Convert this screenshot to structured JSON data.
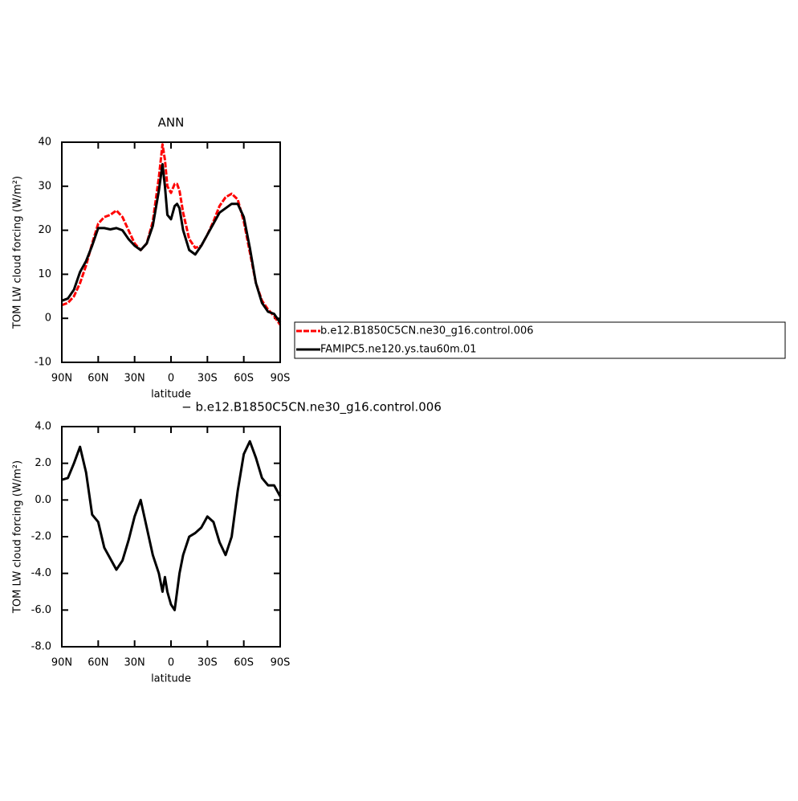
{
  "chart_data": [
    {
      "type": "line",
      "title": "ANN",
      "x_label": "latitude",
      "y_label": "TOM LW cloud forcing (W/m²)",
      "x": [
        90,
        85,
        80,
        75,
        70,
        65,
        60,
        55,
        50,
        45,
        40,
        35,
        30,
        25,
        20,
        15,
        10,
        7,
        5,
        3,
        0,
        -3,
        -5,
        -7,
        -10,
        -15,
        -20,
        -25,
        -30,
        -35,
        -40,
        -45,
        -50,
        -55,
        -60,
        -65,
        -70,
        -75,
        -80,
        -85,
        -90
      ],
      "series": [
        {
          "name": "b.e12.B1850C5CN.ne30_g16.control.006",
          "color": "#ff0000",
          "style": "dashed",
          "values": [
            3,
            3.5,
            5,
            8,
            12,
            17,
            21.5,
            23,
            23.5,
            24.5,
            23,
            20,
            17,
            15.5,
            17,
            22,
            32,
            39.5,
            36,
            30,
            28.5,
            30.5,
            30.5,
            29,
            24,
            18,
            16,
            16.5,
            19,
            22,
            25.5,
            27.5,
            28.3,
            27,
            22,
            15,
            8,
            4,
            2,
            0.5,
            -1.5
          ]
        },
        {
          "name": "FAMIPC5.ne120.ys.tau60m.01",
          "color": "#000000",
          "style": "solid",
          "values": [
            4,
            4.5,
            6.5,
            10.5,
            13,
            16.5,
            20.5,
            20.5,
            20.2,
            20.5,
            20,
            18,
            16.5,
            15.5,
            17,
            21,
            29,
            35,
            30,
            23.5,
            22.5,
            25.5,
            26,
            25,
            20,
            15.5,
            14.5,
            16.5,
            19,
            21.5,
            24,
            25,
            26,
            26,
            23,
            16,
            8,
            3.5,
            1.5,
            1,
            -1
          ]
        }
      ],
      "xlim": [
        90,
        -90
      ],
      "xticks": [
        {
          "value": 90,
          "label": "90N"
        },
        {
          "value": 60,
          "label": "60N"
        },
        {
          "value": 30,
          "label": "30N"
        },
        0,
        {
          "value": -30,
          "label": "30S"
        },
        {
          "value": -60,
          "label": "60S"
        },
        {
          "value": -90,
          "label": "90S"
        }
      ],
      "ylim": [
        -10,
        40
      ],
      "yticks": [
        40,
        30,
        20,
        10,
        0,
        -10
      ],
      "legend": "right"
    },
    {
      "type": "line",
      "title": "− b.e12.B1850C5CN.ne30_g16.control.006",
      "x_label": "latitude",
      "y_label": "TOM LW cloud forcing (W/m²)",
      "x": [
        90,
        85,
        80,
        75,
        70,
        65,
        60,
        55,
        50,
        45,
        40,
        35,
        30,
        25,
        20,
        15,
        10,
        7,
        5,
        3,
        0,
        -3,
        -5,
        -7,
        -10,
        -15,
        -20,
        -25,
        -30,
        -35,
        -40,
        -45,
        -50,
        -55,
        -60,
        -65,
        -70,
        -75,
        -80,
        -85,
        -90
      ],
      "series": [
        {
          "color": "#000000",
          "style": "solid",
          "values": [
            1.1,
            1.2,
            2.0,
            2.9,
            1.5,
            -0.8,
            -1.2,
            -2.6,
            -3.2,
            -3.8,
            -3.3,
            -2.2,
            -0.9,
            0.0,
            -1.5,
            -3.0,
            -4.0,
            -5.0,
            -4.2,
            -5.0,
            -5.7,
            -6.0,
            -5.0,
            -4.0,
            -3.0,
            -2.0,
            -1.8,
            -1.5,
            -0.9,
            -1.2,
            -2.3,
            -3.0,
            -2.0,
            0.5,
            2.5,
            3.2,
            2.3,
            1.2,
            0.8,
            0.8,
            0.2
          ]
        }
      ],
      "xlim": [
        90,
        -90
      ],
      "xticks": [
        {
          "value": 90,
          "label": "90N"
        },
        {
          "value": 60,
          "label": "60N"
        },
        {
          "value": 30,
          "label": "30N"
        },
        0,
        {
          "value": -30,
          "label": "30S"
        },
        {
          "value": -60,
          "label": "60S"
        },
        {
          "value": -90,
          "label": "90S"
        }
      ],
      "ylim": [
        -8,
        4
      ],
      "yticks": [
        {
          "value": 4,
          "label": "4.0"
        },
        {
          "value": 2,
          "label": "2.0"
        },
        {
          "value": 0,
          "label": "0.0"
        },
        {
          "value": -2,
          "label": "-2.0"
        },
        {
          "value": -4,
          "label": "-4.0"
        },
        {
          "value": -6,
          "label": "-6.0"
        },
        {
          "value": -8,
          "label": "-8.0"
        }
      ]
    }
  ]
}
